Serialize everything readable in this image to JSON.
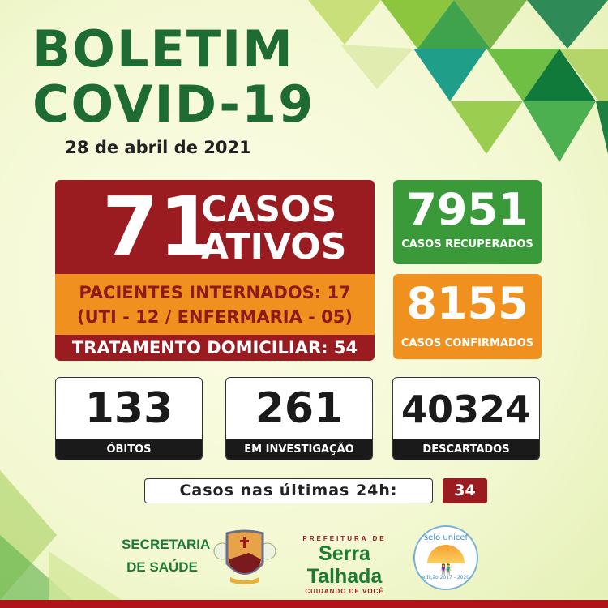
{
  "header": {
    "title_line1": "BOLETIM",
    "title_line2": "COVID-19",
    "date": "28 de abril de 2021"
  },
  "active": {
    "value": "71",
    "label_line1": "CASOS",
    "label_line2": "ATIVOS",
    "hospitalized": "PACIENTES INTERNADOS: 17",
    "hospitalized_detail": "(UTI - 12 / ENFERMARIA - 05)",
    "home_treatment": "TRATAMENTO DOMICILIAR: 54"
  },
  "recovered": {
    "value": "7951",
    "label": "CASOS RECUPERADOS"
  },
  "confirmed": {
    "value": "8155",
    "label": "CASOS CONFIRMADOS"
  },
  "cards": [
    {
      "value": "133",
      "label": "ÓBITOS"
    },
    {
      "value": "261",
      "label": "EM INVESTIGAÇÃO"
    },
    {
      "value": "40324",
      "label": "DESCARTADOS"
    }
  ],
  "last24h": {
    "label": "Casos nas últimas 24h:",
    "value": "34"
  },
  "footer": {
    "secretaria_line1": "SECRETARIA",
    "secretaria_line2": "DE SAÚDE",
    "prefeitura_top": "PREFEITURA DE",
    "prefeitura_name": "Serra Talhada",
    "prefeitura_slogan": "CUIDANDO DE VOCÊ",
    "unicef_top": "selo unicef",
    "unicef_bottom": "edição 2017 - 2020"
  },
  "colors": {
    "green_dark": "#1e6b34",
    "red": "#9a1b20",
    "orange": "#f0901e",
    "green": "#3a9a3a"
  }
}
